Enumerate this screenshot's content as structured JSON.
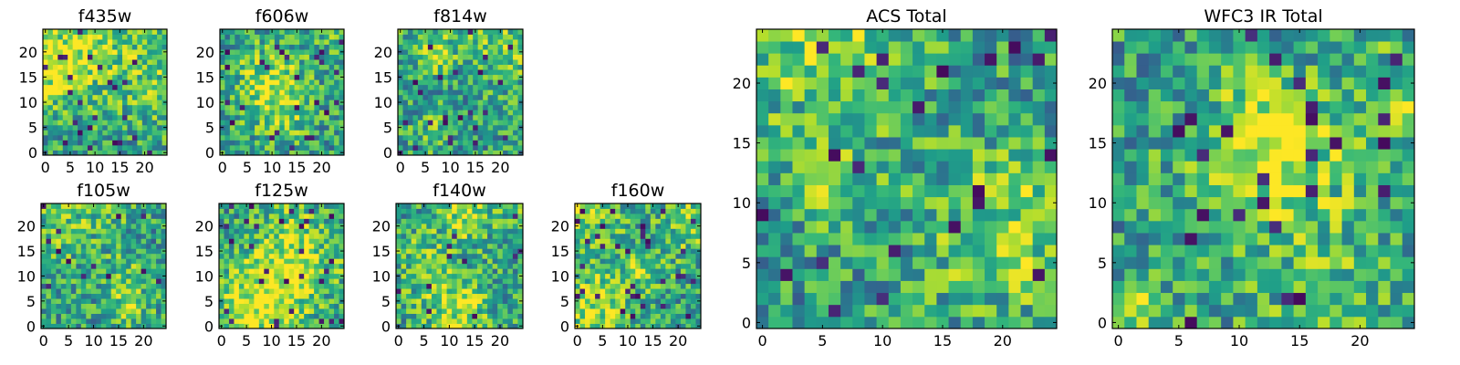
{
  "chart_data": [
    {
      "type": "heatmap",
      "title": "f435w",
      "grid_size": [
        25,
        25
      ],
      "xlim": [
        0,
        24
      ],
      "ylim": [
        0,
        24
      ],
      "xticks": [
        0,
        5,
        10,
        15,
        20
      ],
      "yticks": [
        0,
        5,
        10,
        15,
        20
      ],
      "colormap": "viridis",
      "grid": false,
      "values_description_seed": 435
    },
    {
      "type": "heatmap",
      "title": "f606w",
      "grid_size": [
        25,
        25
      ],
      "xlim": [
        0,
        24
      ],
      "ylim": [
        0,
        24
      ],
      "xticks": [
        0,
        5,
        10,
        15,
        20
      ],
      "yticks": [
        0,
        5,
        10,
        15,
        20
      ],
      "colormap": "viridis",
      "grid": false,
      "values_description_seed": 606
    },
    {
      "type": "heatmap",
      "title": "f814w",
      "grid_size": [
        25,
        25
      ],
      "xlim": [
        0,
        24
      ],
      "ylim": [
        0,
        24
      ],
      "xticks": [
        0,
        5,
        10,
        15,
        20
      ],
      "yticks": [
        0,
        5,
        10,
        15,
        20
      ],
      "colormap": "viridis",
      "grid": false,
      "values_description_seed": 814
    },
    {
      "type": "heatmap",
      "title": "f105w",
      "grid_size": [
        25,
        25
      ],
      "xlim": [
        0,
        24
      ],
      "ylim": [
        0,
        24
      ],
      "xticks": [
        0,
        5,
        10,
        15,
        20
      ],
      "yticks": [
        0,
        5,
        10,
        15,
        20
      ],
      "colormap": "viridis",
      "grid": false,
      "values_description_seed": 105
    },
    {
      "type": "heatmap",
      "title": "f125w",
      "grid_size": [
        25,
        25
      ],
      "xlim": [
        0,
        24
      ],
      "ylim": [
        0,
        24
      ],
      "xticks": [
        0,
        5,
        10,
        15,
        20
      ],
      "yticks": [
        0,
        5,
        10,
        15,
        20
      ],
      "colormap": "viridis",
      "grid": false,
      "values_description_seed": 125
    },
    {
      "type": "heatmap",
      "title": "f140w",
      "grid_size": [
        25,
        25
      ],
      "xlim": [
        0,
        24
      ],
      "ylim": [
        0,
        24
      ],
      "xticks": [
        0,
        5,
        10,
        15,
        20
      ],
      "yticks": [
        0,
        5,
        10,
        15,
        20
      ],
      "colormap": "viridis",
      "grid": false,
      "values_description_seed": 140
    },
    {
      "type": "heatmap",
      "title": "f160w",
      "grid_size": [
        25,
        25
      ],
      "xlim": [
        0,
        24
      ],
      "ylim": [
        0,
        24
      ],
      "xticks": [
        0,
        5,
        10,
        15,
        20
      ],
      "yticks": [
        0,
        5,
        10,
        15,
        20
      ],
      "colormap": "viridis",
      "grid": false,
      "values_description_seed": 160
    },
    {
      "type": "heatmap",
      "title": "ACS Total",
      "grid_size": [
        25,
        25
      ],
      "xlim": [
        0,
        24
      ],
      "ylim": [
        0,
        24
      ],
      "xticks": [
        0,
        5,
        10,
        15,
        20
      ],
      "yticks": [
        0,
        5,
        10,
        15,
        20
      ],
      "colormap": "viridis",
      "grid": false,
      "values_description_seed": 1001
    },
    {
      "type": "heatmap",
      "title": "WFC3 IR Total",
      "grid_size": [
        25,
        25
      ],
      "xlim": [
        0,
        24
      ],
      "ylim": [
        0,
        24
      ],
      "xticks": [
        0,
        5,
        10,
        15,
        20
      ],
      "yticks": [
        0,
        5,
        10,
        15,
        20
      ],
      "colormap": "viridis",
      "grid": false,
      "values_description_seed": 1002
    }
  ]
}
